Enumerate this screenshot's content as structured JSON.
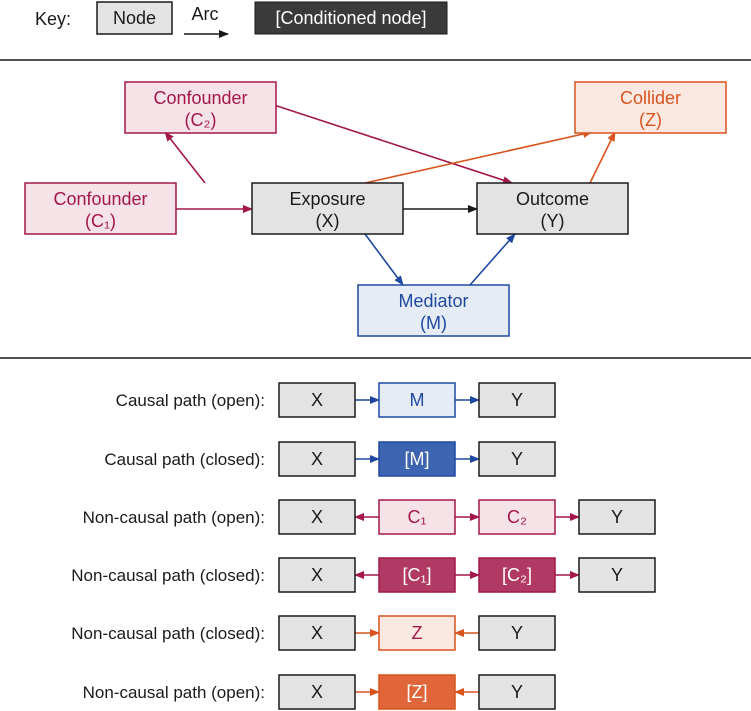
{
  "key": {
    "label": "Key:",
    "node": "Node",
    "arc": "Arc",
    "conditioned": "[Conditioned node]"
  },
  "colors": {
    "gray_fill": "#e3e3e3",
    "black": "#1a1a1a",
    "crimson": "#a3174a",
    "crimson_light": "#f5e3e8",
    "crimson_dark": "#b03a63",
    "blue": "#1f49a0",
    "blue_light": "#e6ecf6",
    "blue_dark": "#3d64b0",
    "orange": "#d9531e",
    "orange_light": "#fbe8e1",
    "orange_dark": "#e0663a",
    "conditioned_fill": "#3a3a3a"
  },
  "dag": {
    "nodes": [
      {
        "id": "C2",
        "line1": "Confounder",
        "line2": "(C₂)",
        "theme": "crimson"
      },
      {
        "id": "C1",
        "line1": "Confounder",
        "line2": "(C₁)",
        "theme": "crimson"
      },
      {
        "id": "X",
        "line1": "Exposure",
        "line2": "(X)",
        "theme": "gray"
      },
      {
        "id": "Y",
        "line1": "Outcome",
        "line2": "(Y)",
        "theme": "gray"
      },
      {
        "id": "Z",
        "line1": "Collider",
        "line2": "(Z)",
        "theme": "orange"
      },
      {
        "id": "M",
        "line1": "Mediator",
        "line2": "(M)",
        "theme": "blue"
      }
    ],
    "arcs": [
      {
        "from": "C1",
        "to": "X",
        "theme": "crimson"
      },
      {
        "from": "C1",
        "to": "C2",
        "theme": "crimson"
      },
      {
        "from": "C2",
        "to": "Y",
        "theme": "crimson"
      },
      {
        "from": "X",
        "to": "Y",
        "theme": "gray"
      },
      {
        "from": "X",
        "to": "M",
        "theme": "blue"
      },
      {
        "from": "M",
        "to": "Y",
        "theme": "blue"
      },
      {
        "from": "X",
        "to": "Z",
        "theme": "orange"
      },
      {
        "from": "Y",
        "to": "Z",
        "theme": "orange"
      }
    ]
  },
  "paths": [
    {
      "label": "Causal path (open):",
      "nodes": [
        {
          "t": "X",
          "s": "gray"
        },
        {
          "t": "M",
          "s": "blue-open"
        },
        {
          "t": "Y",
          "s": "gray"
        }
      ],
      "arrows": [
        "right",
        "right"
      ],
      "theme": "blue"
    },
    {
      "label": "Causal path (closed):",
      "nodes": [
        {
          "t": "X",
          "s": "gray"
        },
        {
          "t": "[M]",
          "s": "blue-cond"
        },
        {
          "t": "Y",
          "s": "gray"
        }
      ],
      "arrows": [
        "right",
        "right"
      ],
      "theme": "blue"
    },
    {
      "label": "Non-causal path (open):",
      "nodes": [
        {
          "t": "X",
          "s": "gray"
        },
        {
          "t": "C₁",
          "s": "crimson-open"
        },
        {
          "t": "C₂",
          "s": "crimson-open"
        },
        {
          "t": "Y",
          "s": "gray"
        }
      ],
      "arrows": [
        "left",
        "right",
        "right"
      ],
      "theme": "crimson"
    },
    {
      "label": "Non-causal path (closed):",
      "nodes": [
        {
          "t": "X",
          "s": "gray"
        },
        {
          "t": "[C₁]",
          "s": "crimson-cond"
        },
        {
          "t": "[C₂]",
          "s": "crimson-cond"
        },
        {
          "t": "Y",
          "s": "gray"
        }
      ],
      "arrows": [
        "left",
        "right",
        "right"
      ],
      "theme": "crimson"
    },
    {
      "label": "Non-causal path (closed):",
      "nodes": [
        {
          "t": "X",
          "s": "gray"
        },
        {
          "t": "Z",
          "s": "orange-open"
        },
        {
          "t": "Y",
          "s": "gray"
        }
      ],
      "arrows": [
        "right",
        "left"
      ],
      "theme": "orange"
    },
    {
      "label": "Non-causal path (open):",
      "nodes": [
        {
          "t": "X",
          "s": "gray"
        },
        {
          "t": "[Z]",
          "s": "orange-cond"
        },
        {
          "t": "Y",
          "s": "gray"
        }
      ],
      "arrows": [
        "right",
        "left"
      ],
      "theme": "orange"
    }
  ]
}
